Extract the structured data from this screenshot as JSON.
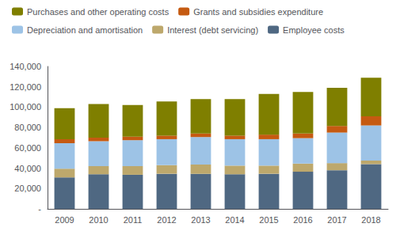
{
  "chart_data": {
    "type": "bar",
    "stacked": true,
    "grid": false,
    "legend": "upper left",
    "categories": [
      "2009",
      "2010",
      "2011",
      "2012",
      "2013",
      "2014",
      "2015",
      "2016",
      "2017",
      "2018"
    ],
    "series": [
      {
        "name": "Employee costs",
        "color": "#4F6882",
        "values": [
          31000,
          34000,
          33500,
          34500,
          34500,
          34000,
          34500,
          36500,
          38000,
          44000
        ]
      },
      {
        "name": "Interest (debt servicing)",
        "color": "#BDA86C",
        "values": [
          8500,
          8000,
          8500,
          8500,
          9000,
          8500,
          8000,
          8000,
          7000,
          3500
        ]
      },
      {
        "name": "Depreciation and amortisation",
        "color": "#9DC3E6",
        "values": [
          25000,
          24500,
          25500,
          25500,
          27000,
          26000,
          26000,
          25000,
          30000,
          34500
        ]
      },
      {
        "name": "Grants and subsidies expenditure",
        "color": "#C55A11",
        "values": [
          4000,
          3500,
          3500,
          3500,
          3500,
          3500,
          4500,
          4500,
          6500,
          9000
        ]
      },
      {
        "name": "Purchases and other operating costs",
        "color": "#7F7F00",
        "values": [
          30500,
          33000,
          31000,
          33500,
          34000,
          36000,
          40000,
          41000,
          37500,
          38000
        ]
      }
    ],
    "ylim": [
      0,
      140000
    ],
    "yticks": [
      {
        "value": 0,
        "label": "-"
      },
      {
        "value": 20000,
        "label": "20,000"
      },
      {
        "value": 40000,
        "label": "40,000"
      },
      {
        "value": 60000,
        "label": "60,000"
      },
      {
        "value": 80000,
        "label": "80,000"
      },
      {
        "value": 100000,
        "label": "100,000"
      },
      {
        "value": 120000,
        "label": "120,000"
      },
      {
        "value": 140000,
        "label": "140,000"
      }
    ]
  }
}
